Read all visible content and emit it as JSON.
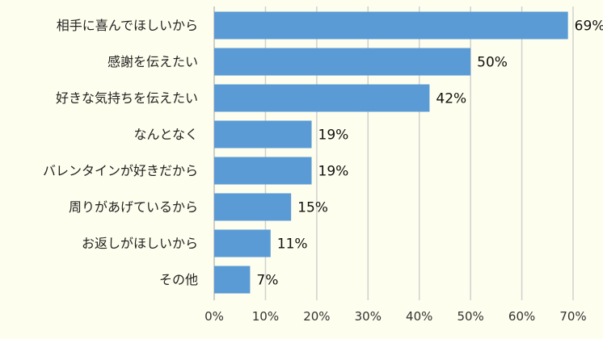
{
  "chart_data": {
    "type": "bar",
    "orientation": "horizontal",
    "categories": [
      "相手に喜んでほしいから",
      "感謝を伝えたい",
      "好きな気持ちを伝えたい",
      "なんとなく",
      "バレンタインが好きだから",
      "周りがあげているから",
      "お返しがほしいから",
      "その他"
    ],
    "values": [
      69,
      50,
      42,
      19,
      19,
      15,
      11,
      7
    ],
    "value_labels": [
      "69%",
      "50%",
      "42%",
      "19%",
      "19%",
      "15%",
      "11%",
      "7%"
    ],
    "x_ticks": [
      0,
      10,
      20,
      30,
      40,
      50,
      60,
      70
    ],
    "x_tick_labels": [
      "0%",
      "10%",
      "20%",
      "30%",
      "40%",
      "50%",
      "60%",
      "70%"
    ],
    "xlim": [
      0,
      70
    ],
    "grid": true,
    "bar_color": "#5b9bd5",
    "background_color": "#fefeee"
  }
}
